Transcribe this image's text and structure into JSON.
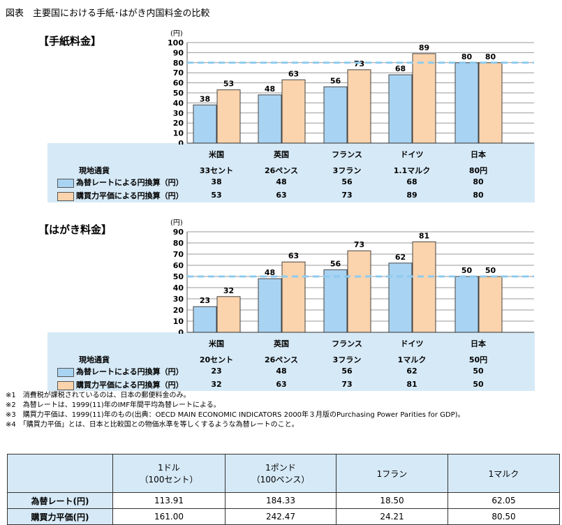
{
  "title": "図表　主要国における手紙･はがき内国料金の比較",
  "chart_data": [
    {
      "type": "bar",
      "title": "【手紙料金】",
      "ylabel": "(円)",
      "ylim": [
        0,
        100
      ],
      "yticks": [
        0,
        10,
        20,
        30,
        40,
        50,
        60,
        70,
        80,
        90,
        100
      ],
      "reference_line": 80,
      "categories": [
        "米国",
        "英国",
        "フランス",
        "ドイツ",
        "日本"
      ],
      "local_label": "現地通貨",
      "local": [
        "33セント",
        "26ペンス",
        "3フラン",
        "1.1マルク",
        "80円"
      ],
      "series": [
        {
          "name": "為替レートによる円換算（円）",
          "color": "#a9d3f2",
          "values": [
            38,
            48,
            56,
            68,
            80
          ]
        },
        {
          "name": "購買力平価による円換算（円）",
          "color": "#fbd3ac",
          "values": [
            53,
            63,
            73,
            89,
            80
          ]
        }
      ]
    },
    {
      "type": "bar",
      "title": "【はがき料金】",
      "ylabel": "(円)",
      "ylim": [
        0,
        90
      ],
      "yticks": [
        0,
        10,
        20,
        30,
        40,
        50,
        60,
        70,
        80,
        90
      ],
      "reference_line": 50,
      "categories": [
        "米国",
        "英国",
        "フランス",
        "ドイツ",
        "日本"
      ],
      "local_label": "現地通貨",
      "local": [
        "20セント",
        "26ペンス",
        "3フラン",
        "1マルク",
        "50円"
      ],
      "series": [
        {
          "name": "為替レートによる円換算（円）",
          "color": "#a9d3f2",
          "values": [
            23,
            48,
            56,
            62,
            50
          ]
        },
        {
          "name": "購買力平価による円換算（円）",
          "color": "#fbd3ac",
          "values": [
            32,
            63,
            73,
            81,
            50
          ]
        }
      ]
    }
  ],
  "notes": [
    "※1　消費税が課税されているのは、日本の郵便料金のみ。",
    "※2　為替レートは、1999(11)年のIMF年間平均為替レートによる。",
    "※3　購買力平価は、1999(11)年のもの(出典：OECD MAIN ECONOMIC INDICATORS 2000年３月版のPurchasing Power Parities for GDP)。",
    "※4　「購買力平価」とは、日本と比較国との物価水準を等しくするような為替レートのこと。"
  ],
  "table": {
    "headers": [
      "",
      "1ドル\n（100セント）",
      "1ポンド\n（100ペンス）",
      "1フラン",
      "1マルク"
    ],
    "rows": [
      [
        "為替レート(円)",
        "113.91",
        "184.33",
        "18.50",
        "62.05"
      ],
      [
        "購買力平価(円)",
        "161.00",
        "242.47",
        "24.21",
        "80.50"
      ]
    ]
  }
}
